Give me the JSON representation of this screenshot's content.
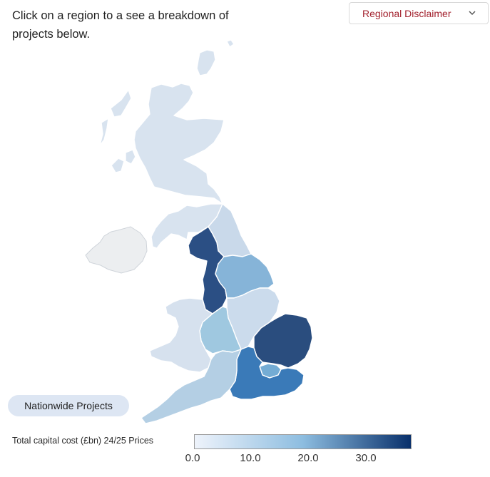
{
  "intro_text": "Click on a region to a see a breakdown of projects below.",
  "disclaimer": {
    "label": "Regional Disclaimer",
    "icon": "chevron-down-icon"
  },
  "map": {
    "regions": [
      {
        "name": "Scotland",
        "fill": "#d8e3ef"
      },
      {
        "name": "North East",
        "fill": "#c9d9ea"
      },
      {
        "name": "North West",
        "fill": "#2b4f84"
      },
      {
        "name": "Yorkshire and the Humber",
        "fill": "#86b4d8"
      },
      {
        "name": "Wales",
        "fill": "#d6e1ee"
      },
      {
        "name": "West Midlands",
        "fill": "#9fc8e0"
      },
      {
        "name": "East Midlands",
        "fill": "#cbdbec"
      },
      {
        "name": "East of England",
        "fill": "#2a4d7e"
      },
      {
        "name": "London",
        "fill": "#74acd4"
      },
      {
        "name": "South East",
        "fill": "#3a7ab8"
      },
      {
        "name": "South West",
        "fill": "#b4cfe4"
      },
      {
        "name": "Northern Ireland",
        "fill": "#eceef0"
      }
    ]
  },
  "nationwide_button": "Nationwide Projects",
  "legend": {
    "title": "Total capital cost (£bn) 24/25 Prices",
    "ticks": [
      "0.0",
      "10.0",
      "20.0",
      "30.0"
    ],
    "color_low": "#eef3fb",
    "color_mid": "#8dbde0",
    "color_high": "#08306b"
  }
}
